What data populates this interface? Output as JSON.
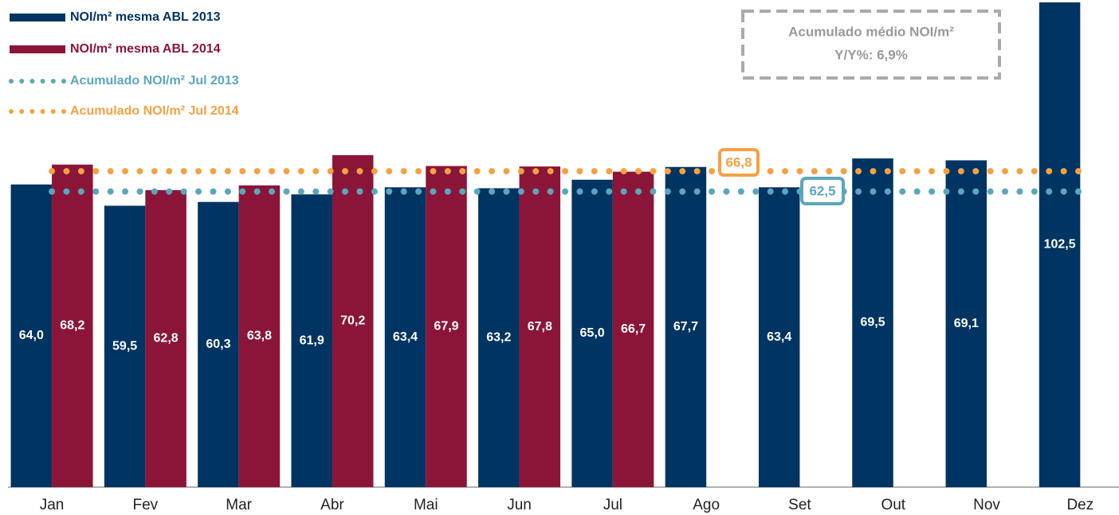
{
  "chart_data": {
    "type": "bar",
    "categories": [
      "Jan",
      "Fev",
      "Mar",
      "Abr",
      "Mai",
      "Jun",
      "Jul",
      "Ago",
      "Set",
      "Out",
      "Nov",
      "Dez"
    ],
    "series": [
      {
        "name": "NOI/m² mesma ABL 2013",
        "color": "#003462",
        "values": [
          64.0,
          59.5,
          60.3,
          61.9,
          63.4,
          63.2,
          65.0,
          67.7,
          63.4,
          69.5,
          69.1,
          102.5
        ],
        "value_labels": [
          "64,0",
          "59,5",
          "60,3",
          "61,9",
          "63,4",
          "63,2",
          "65,0",
          "67,7",
          "63,4",
          "69,5",
          "69,1",
          "102,5"
        ]
      },
      {
        "name": "NOI/m² mesma ABL 2014",
        "color": "#8b1538",
        "values": [
          68.2,
          62.8,
          63.8,
          70.2,
          67.9,
          67.8,
          66.7,
          null,
          null,
          null,
          null,
          null
        ],
        "value_labels": [
          "68,2",
          "62,8",
          "63,8",
          "70,2",
          "67,9",
          "67,8",
          "66,7",
          null,
          null,
          null,
          null,
          null
        ]
      }
    ],
    "lines": [
      {
        "name": "Acumulado NOI/m² Jul 2013",
        "color": "#5aa6be",
        "value": 62.5,
        "value_label": "62,5"
      },
      {
        "name": "Acumulado NOI/m² Jul 2014",
        "color": "#f4a142",
        "value": 66.8,
        "value_label": "66,8"
      }
    ],
    "annotation": [
      "Acumulado médio NOI/m²",
      "Y/Y%: 6,9%"
    ],
    "ylim": [
      0,
      103
    ],
    "grid": false
  }
}
